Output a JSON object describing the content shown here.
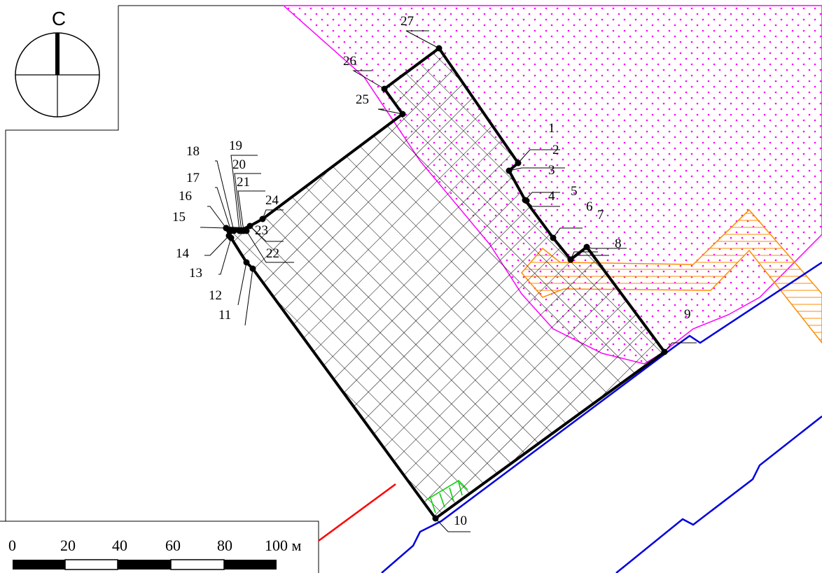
{
  "north_arrow": {
    "label": "С"
  },
  "scale_bar": {
    "ticks": [
      "0",
      "20",
      "40",
      "60",
      "80",
      "100 м"
    ]
  },
  "points": [
    {
      "id": "1",
      "label": "1"
    },
    {
      "id": "2",
      "label": "2"
    },
    {
      "id": "3",
      "label": "3"
    },
    {
      "id": "4",
      "label": "4"
    },
    {
      "id": "5",
      "label": "5"
    },
    {
      "id": "6",
      "label": "6"
    },
    {
      "id": "7",
      "label": "7"
    },
    {
      "id": "8",
      "label": "8"
    },
    {
      "id": "9",
      "label": "9"
    },
    {
      "id": "10",
      "label": "10"
    },
    {
      "id": "11",
      "label": "11"
    },
    {
      "id": "12",
      "label": "12"
    },
    {
      "id": "13",
      "label": "13"
    },
    {
      "id": "14",
      "label": "14"
    },
    {
      "id": "15",
      "label": "15"
    },
    {
      "id": "16",
      "label": "16"
    },
    {
      "id": "17",
      "label": "17"
    },
    {
      "id": "18",
      "label": "18"
    },
    {
      "id": "19",
      "label": "19"
    },
    {
      "id": "20",
      "label": "20"
    },
    {
      "id": "21",
      "label": "21"
    },
    {
      "id": "22",
      "label": "22"
    },
    {
      "id": "23",
      "label": "23"
    },
    {
      "id": "24",
      "label": "24"
    },
    {
      "id": "25",
      "label": "25"
    },
    {
      "id": "26",
      "label": "26"
    },
    {
      "id": "27",
      "label": "27"
    }
  ],
  "colors": {
    "boundary": "#000000",
    "dotted_zone": "#ff00ff",
    "orange_zone": "#ff8c00",
    "road": "#0000dd",
    "red_line": "#ff0000",
    "green_mark": "#00cc00"
  }
}
